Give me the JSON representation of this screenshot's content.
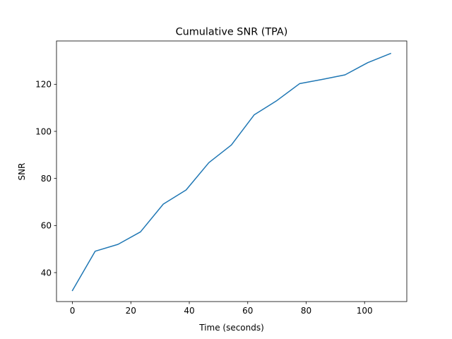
{
  "chart_data": {
    "type": "line",
    "title": "Cumulative SNR (TPA)",
    "xlabel": "Time (seconds)",
    "ylabel": "SNR",
    "xlim": [
      -5.45,
      114.45
    ],
    "ylim": [
      27.7,
      138.4
    ],
    "xticks": [
      0,
      20,
      40,
      60,
      80,
      100
    ],
    "yticks": [
      40,
      60,
      80,
      100,
      120
    ],
    "grid": false,
    "series": [
      {
        "color": "#1f77b4",
        "x": [
          0,
          7.8,
          15.6,
          23.3,
          31.1,
          38.9,
          46.7,
          54.4,
          62.2,
          70.0,
          77.8,
          85.6,
          93.3,
          101.1,
          108.9
        ],
        "y": [
          32.4,
          49.1,
          52.0,
          57.3,
          69.1,
          75.1,
          86.7,
          94.2,
          107.0,
          113.1,
          120.3,
          122.1,
          124.0,
          129.2,
          133.1
        ]
      }
    ]
  }
}
